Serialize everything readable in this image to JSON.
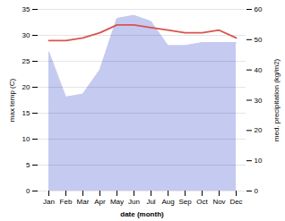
{
  "chart_data": {
    "type": "line",
    "xlabel": "date (month)",
    "ylabel": "max temp (C)",
    "y2label": "med. precipitation (kg/m2)",
    "categories": [
      "Jan",
      "Feb",
      "Mar",
      "Apr",
      "May",
      "Jun",
      "Jul",
      "Aug",
      "Sep",
      "Oct",
      "Nov",
      "Dec"
    ],
    "series": [
      {
        "type": "area",
        "axis": "y2",
        "color": "#c5caf0",
        "values": [
          46,
          31,
          32,
          40,
          57,
          58,
          56,
          48,
          48,
          49,
          49,
          49
        ]
      },
      {
        "type": "line",
        "color": "#d9534f",
        "values": [
          29.0,
          29.0,
          29.5,
          30.5,
          32.0,
          32.0,
          31.5,
          31.0,
          30.5,
          30.5,
          31.0,
          29.5
        ]
      }
    ],
    "ylim": [
      0,
      35
    ],
    "yticks": [
      0,
      5,
      10,
      15,
      20,
      25,
      30,
      35
    ],
    "y2lim": [
      0,
      60
    ],
    "y2ticks": [
      0,
      10,
      20,
      30,
      40,
      50,
      60
    ],
    "grid": true
  }
}
